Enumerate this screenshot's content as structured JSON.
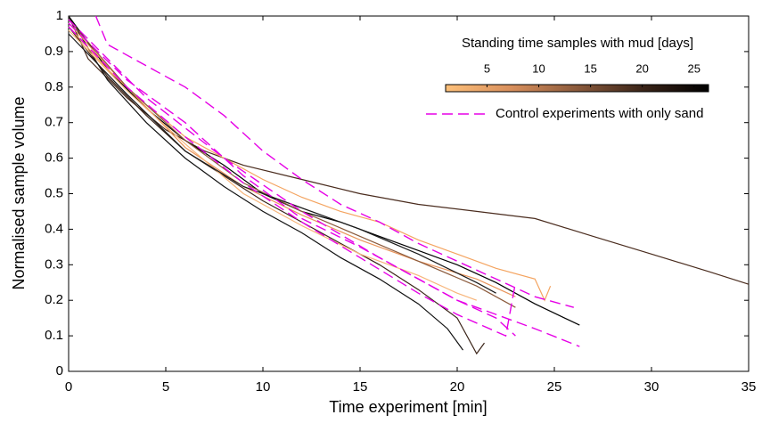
{
  "chart_data": {
    "type": "line",
    "xlabel": "Time experiment [min]",
    "ylabel": "Normalised sample volume",
    "xlim": [
      0,
      35
    ],
    "ylim": [
      0,
      1
    ],
    "xticks": [
      0,
      5,
      10,
      15,
      20,
      25,
      30,
      35
    ],
    "yticks": [
      0,
      0.1,
      0.2,
      0.3,
      0.4,
      0.5,
      0.6,
      0.7,
      0.8,
      0.9,
      1
    ],
    "grid": false,
    "colorbar": {
      "title": "Standing time samples with mud [days]",
      "lim": [
        1,
        26.4
      ],
      "ticks": [
        5,
        10,
        15,
        20,
        25
      ],
      "colors": [
        "#fdc07a",
        "#d88f5c",
        "#8b5a3c",
        "#3a2418",
        "#000000"
      ]
    },
    "legend": {
      "label": "Control experiments with only sand",
      "color": "#e600e6"
    },
    "series": [
      {
        "color": "#4a2c1e",
        "x": [
          0,
          1,
          3,
          5,
          7,
          9,
          12,
          15,
          18,
          21,
          24,
          27,
          30,
          33,
          35
        ],
        "values": [
          1,
          0.88,
          0.77,
          0.68,
          0.62,
          0.58,
          0.54,
          0.5,
          0.47,
          0.45,
          0.43,
          0.38,
          0.33,
          0.28,
          0.245
        ]
      },
      {
        "color": "#000000",
        "x": [
          0,
          2,
          4,
          6,
          8,
          10,
          12,
          14,
          16,
          18,
          20,
          22,
          24,
          26.3
        ],
        "values": [
          1,
          0.85,
          0.74,
          0.65,
          0.58,
          0.5,
          0.45,
          0.42,
          0.38,
          0.34,
          0.3,
          0.25,
          0.19,
          0.13
        ]
      },
      {
        "color": "#111111",
        "x": [
          0,
          2,
          4,
          6,
          8,
          10,
          12,
          14,
          16,
          18,
          19.5,
          20.3
        ],
        "values": [
          1,
          0.82,
          0.7,
          0.6,
          0.52,
          0.45,
          0.39,
          0.32,
          0.26,
          0.19,
          0.12,
          0.06
        ]
      },
      {
        "color": "#3a2418",
        "x": [
          0,
          2,
          4,
          6,
          8,
          10,
          12,
          14,
          16,
          18,
          20,
          21,
          21.4
        ],
        "values": [
          0.97,
          0.83,
          0.72,
          0.62,
          0.55,
          0.48,
          0.42,
          0.36,
          0.3,
          0.23,
          0.15,
          0.05,
          0.08
        ]
      },
      {
        "color": "#f4a460",
        "x": [
          0,
          2,
          4,
          6,
          8,
          10,
          12,
          14,
          16,
          18,
          20,
          22,
          24,
          24.5,
          24.8
        ],
        "values": [
          0.97,
          0.85,
          0.75,
          0.66,
          0.6,
          0.54,
          0.49,
          0.45,
          0.42,
          0.37,
          0.33,
          0.29,
          0.26,
          0.2,
          0.24
        ]
      },
      {
        "color": "#e9955c",
        "x": [
          0,
          3,
          6,
          9,
          12,
          15,
          18,
          21,
          23
        ],
        "values": [
          0.98,
          0.8,
          0.63,
          0.52,
          0.44,
          0.37,
          0.31,
          0.26,
          0.21
        ]
      },
      {
        "color": "#f7b57a",
        "x": [
          0,
          3,
          6,
          9,
          12,
          15,
          18,
          20,
          21
        ],
        "values": [
          0.96,
          0.79,
          0.64,
          0.5,
          0.41,
          0.33,
          0.27,
          0.22,
          0.2
        ]
      },
      {
        "color": "#8b5a3c",
        "x": [
          0,
          3,
          6,
          9,
          12,
          15,
          18,
          21,
          23
        ],
        "values": [
          0.99,
          0.8,
          0.65,
          0.53,
          0.45,
          0.38,
          0.31,
          0.24,
          0.18
        ]
      },
      {
        "color": "#1a1a1a",
        "x": [
          0,
          3,
          6,
          9,
          12,
          15,
          18,
          21,
          22
        ],
        "values": [
          0.95,
          0.78,
          0.62,
          0.52,
          0.46,
          0.4,
          0.33,
          0.25,
          0.22
        ]
      },
      {
        "color": "#e600e6",
        "dashed": true,
        "x": [
          1.4,
          2,
          4,
          6,
          8,
          10,
          12,
          14,
          16,
          18,
          20,
          22,
          24,
          26
        ],
        "values": [
          1,
          0.92,
          0.86,
          0.8,
          0.72,
          0.62,
          0.54,
          0.47,
          0.42,
          0.36,
          0.31,
          0.26,
          0.21,
          0.18
        ]
      },
      {
        "color": "#e600e6",
        "dashed": true,
        "x": [
          0,
          3,
          6,
          9,
          12,
          15,
          18,
          20,
          22,
          23
        ],
        "values": [
          0.98,
          0.82,
          0.7,
          0.55,
          0.43,
          0.35,
          0.26,
          0.2,
          0.15,
          0.1
        ]
      },
      {
        "color": "#e600e6",
        "dashed": true,
        "x": [
          0,
          3,
          6,
          9,
          12,
          15,
          18,
          20,
          22.5,
          23
        ],
        "values": [
          0.97,
          0.8,
          0.66,
          0.53,
          0.42,
          0.32,
          0.22,
          0.16,
          0.1,
          0.25
        ]
      },
      {
        "color": "#e600e6",
        "dashed": true,
        "x": [
          0,
          4,
          8,
          12,
          16,
          20,
          24,
          26.3
        ],
        "values": [
          0.99,
          0.77,
          0.6,
          0.45,
          0.32,
          0.2,
          0.12,
          0.07
        ]
      }
    ]
  }
}
